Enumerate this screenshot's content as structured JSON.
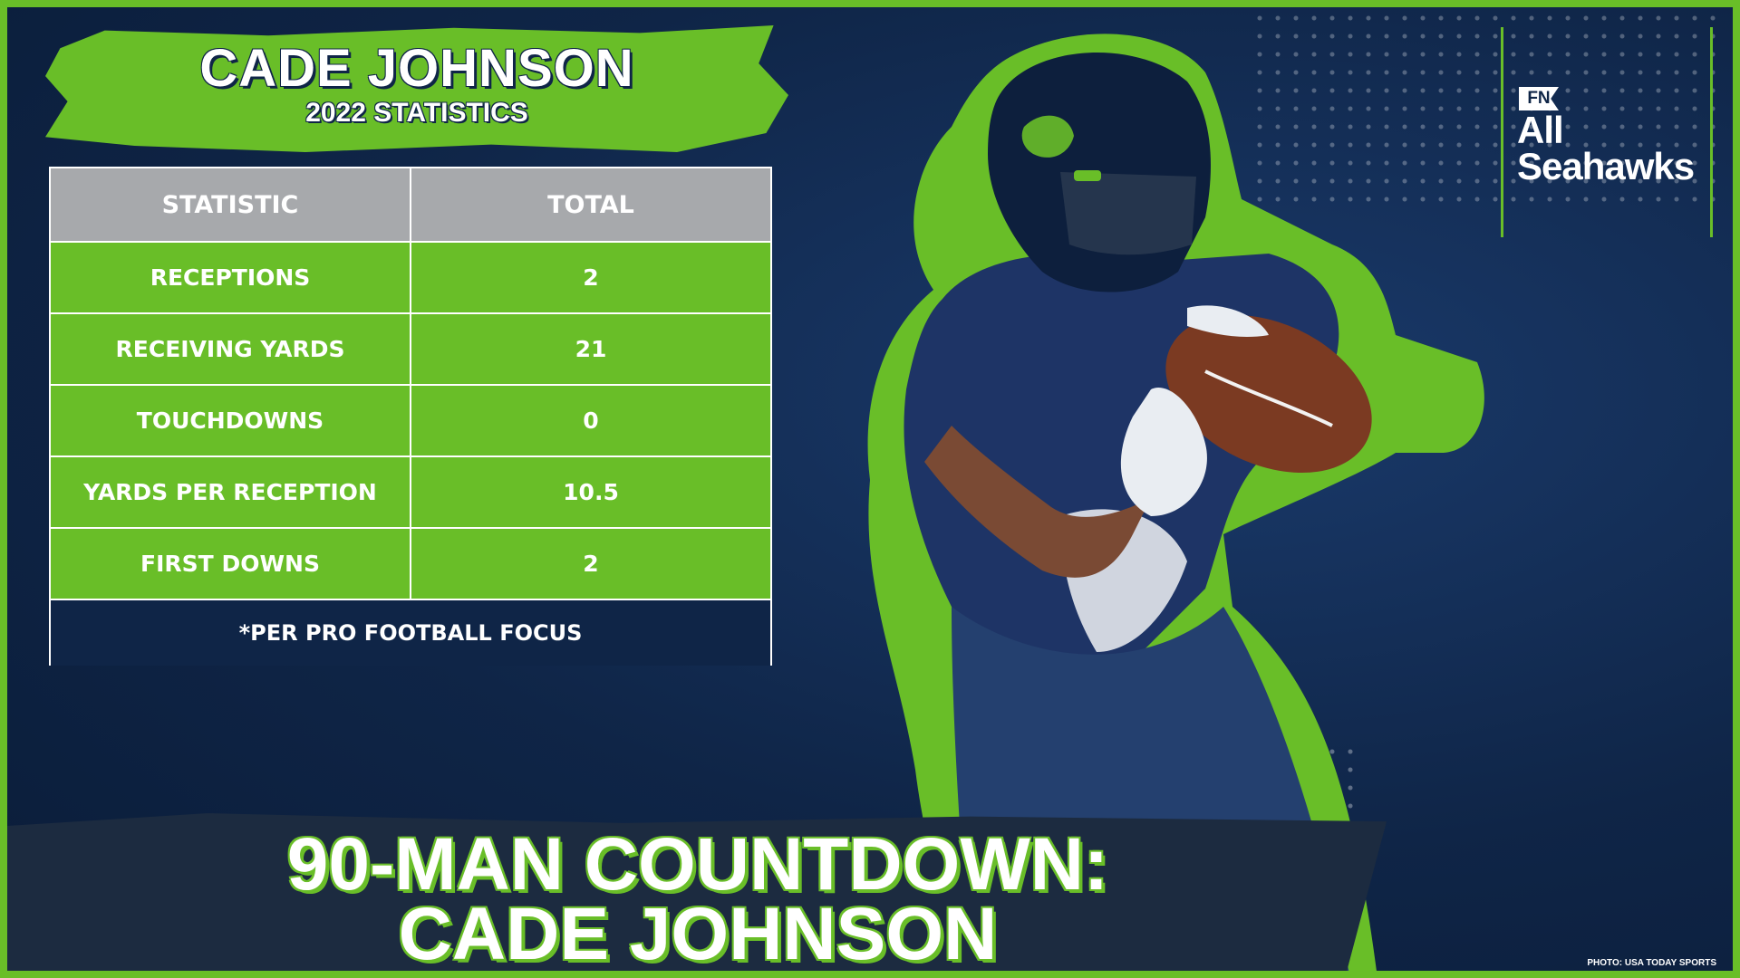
{
  "banner": {
    "title": "CADE JOHNSON",
    "subtitle": "2022 STATISTICS"
  },
  "table": {
    "headers": [
      "STATISTIC",
      "TOTAL"
    ],
    "rows": [
      {
        "stat": "RECEPTIONS",
        "total": "2"
      },
      {
        "stat": "RECEIVING YARDS",
        "total": "21"
      },
      {
        "stat": "TOUCHDOWNS",
        "total": "0"
      },
      {
        "stat": "YARDS PER RECEPTION",
        "total": "10.5"
      },
      {
        "stat": "FIRST DOWNS",
        "total": "2"
      }
    ],
    "source": "*PER PRO FOOTBALL FOCUS"
  },
  "logo": {
    "badge": "FN",
    "line1": "All",
    "line2": "Seahawks"
  },
  "headline": {
    "line1": "90-MAN COUNTDOWN:",
    "line2": "CADE JOHNSON"
  },
  "credit": "PHOTO: USA TODAY SPORTS",
  "colors": {
    "navy": "#0f2547",
    "action_green": "#69be28",
    "wolf_gray": "#a7a9ac"
  }
}
